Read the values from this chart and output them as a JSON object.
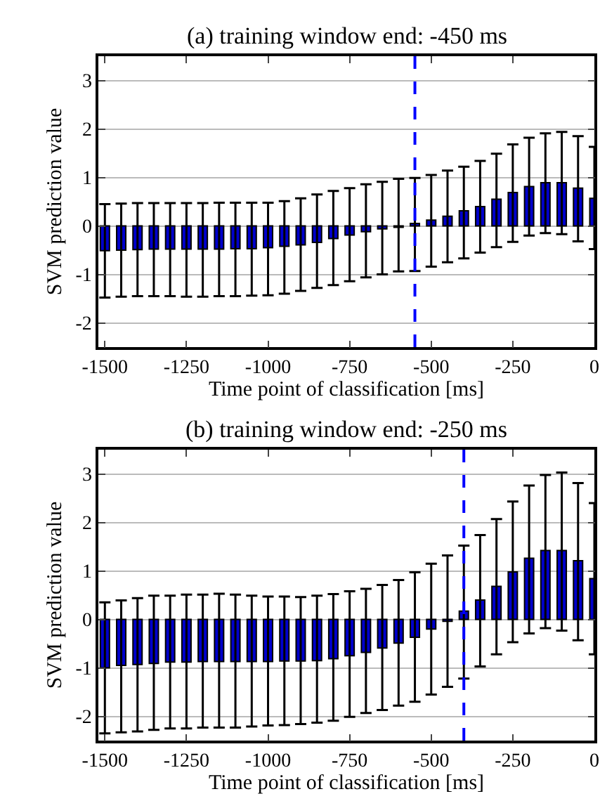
{
  "chart_data": [
    {
      "type": "bar",
      "title": "(a) training window end: -450 ms",
      "xlabel": "Time point of classification [ms]",
      "ylabel": "SVM prediction value",
      "x": [
        -1500,
        -1450,
        -1400,
        -1350,
        -1300,
        -1250,
        -1200,
        -1150,
        -1100,
        -1050,
        -1000,
        -950,
        -900,
        -850,
        -800,
        -750,
        -700,
        -650,
        -600,
        -550,
        -500,
        -450,
        -400,
        -350,
        -300,
        -250,
        -200,
        -150,
        -100,
        -50,
        0
      ],
      "series": [
        {
          "color": "#0000cc",
          "values": [
            -0.51,
            -0.5,
            -0.49,
            -0.48,
            -0.48,
            -0.48,
            -0.48,
            -0.48,
            -0.47,
            -0.47,
            -0.45,
            -0.42,
            -0.39,
            -0.34,
            -0.26,
            -0.19,
            -0.12,
            -0.06,
            -0.03,
            0.05,
            0.12,
            0.2,
            0.31,
            0.4,
            0.55,
            0.69,
            0.81,
            0.89,
            0.89,
            0.78,
            0.57
          ],
          "errors": [
            [
              -1.48,
              0.45
            ],
            [
              -1.46,
              0.46
            ],
            [
              -1.45,
              0.47
            ],
            [
              -1.45,
              0.47
            ],
            [
              -1.45,
              0.47
            ],
            [
              -1.46,
              0.47
            ],
            [
              -1.46,
              0.47
            ],
            [
              -1.45,
              0.48
            ],
            [
              -1.45,
              0.48
            ],
            [
              -1.44,
              0.48
            ],
            [
              -1.43,
              0.48
            ],
            [
              -1.4,
              0.51
            ],
            [
              -1.34,
              0.57
            ],
            [
              -1.28,
              0.65
            ],
            [
              -1.22,
              0.72
            ],
            [
              -1.14,
              0.78
            ],
            [
              -1.06,
              0.86
            ],
            [
              -1.0,
              0.91
            ],
            [
              -0.94,
              0.97
            ],
            [
              -0.93,
              0.99
            ],
            [
              -0.84,
              1.05
            ],
            [
              -0.75,
              1.14
            ],
            [
              -0.67,
              1.22
            ],
            [
              -0.55,
              1.34
            ],
            [
              -0.44,
              1.49
            ],
            [
              -0.33,
              1.68
            ],
            [
              -0.2,
              1.82
            ],
            [
              -0.15,
              1.91
            ],
            [
              -0.17,
              1.94
            ],
            [
              -0.32,
              1.85
            ],
            [
              -0.48,
              1.63
            ]
          ]
        }
      ],
      "xlim": [
        -1520,
        0
      ],
      "xticks": [
        -1500,
        -1250,
        -1000,
        -750,
        -500,
        -250,
        0
      ],
      "ylim": [
        -2.5,
        3.5
      ],
      "yticks": [
        -2,
        -1,
        0,
        1,
        2,
        3
      ],
      "grid": "y",
      "ref_lines": [
        {
          "axis": "x",
          "value": -550,
          "color": "#0000ff",
          "line_style": "dashed"
        }
      ]
    },
    {
      "type": "bar",
      "title": "(b) training window end: -250 ms",
      "xlabel": "Time point of classification [ms]",
      "ylabel": "SVM prediction value",
      "x": [
        -1500,
        -1450,
        -1400,
        -1350,
        -1300,
        -1250,
        -1200,
        -1150,
        -1100,
        -1050,
        -1000,
        -950,
        -900,
        -850,
        -800,
        -750,
        -700,
        -650,
        -600,
        -550,
        -500,
        -450,
        -400,
        -350,
        -300,
        -250,
        -200,
        -150,
        -100,
        -50,
        0
      ],
      "series": [
        {
          "color": "#0000cc",
          "values": [
            -1.0,
            -0.95,
            -0.93,
            -0.91,
            -0.88,
            -0.88,
            -0.87,
            -0.87,
            -0.87,
            -0.87,
            -0.87,
            -0.86,
            -0.86,
            -0.85,
            -0.81,
            -0.75,
            -0.68,
            -0.59,
            -0.49,
            -0.37,
            -0.2,
            -0.04,
            0.17,
            0.4,
            0.68,
            0.98,
            1.26,
            1.42,
            1.42,
            1.21,
            0.84
          ],
          "errors": [
            [
              -2.35,
              0.35
            ],
            [
              -2.33,
              0.39
            ],
            [
              -2.31,
              0.44
            ],
            [
              -2.28,
              0.49
            ],
            [
              -2.25,
              0.49
            ],
            [
              -2.25,
              0.51
            ],
            [
              -2.23,
              0.51
            ],
            [
              -2.23,
              0.53
            ],
            [
              -2.23,
              0.51
            ],
            [
              -2.21,
              0.49
            ],
            [
              -2.19,
              0.47
            ],
            [
              -2.18,
              0.47
            ],
            [
              -2.16,
              0.46
            ],
            [
              -2.13,
              0.49
            ],
            [
              -2.09,
              0.52
            ],
            [
              -2.01,
              0.58
            ],
            [
              -1.93,
              0.63
            ],
            [
              -1.87,
              0.71
            ],
            [
              -1.78,
              0.81
            ],
            [
              -1.7,
              0.97
            ],
            [
              -1.55,
              1.15
            ],
            [
              -1.39,
              1.32
            ],
            [
              -1.22,
              1.52
            ],
            [
              -0.97,
              1.74
            ],
            [
              -0.72,
              2.07
            ],
            [
              -0.47,
              2.43
            ],
            [
              -0.29,
              2.76
            ],
            [
              -0.18,
              2.98
            ],
            [
              -0.23,
              3.03
            ],
            [
              -0.43,
              2.81
            ],
            [
              -0.72,
              2.4
            ]
          ]
        }
      ],
      "xlim": [
        -1520,
        0
      ],
      "xticks": [
        -1500,
        -1250,
        -1000,
        -750,
        -500,
        -250,
        0
      ],
      "ylim": [
        -2.5,
        3.5
      ],
      "yticks": [
        -2,
        -1,
        0,
        1,
        2,
        3
      ],
      "grid": "y",
      "ref_lines": [
        {
          "axis": "x",
          "value": -400,
          "color": "#0000ff",
          "line_style": "dashed"
        }
      ]
    }
  ]
}
